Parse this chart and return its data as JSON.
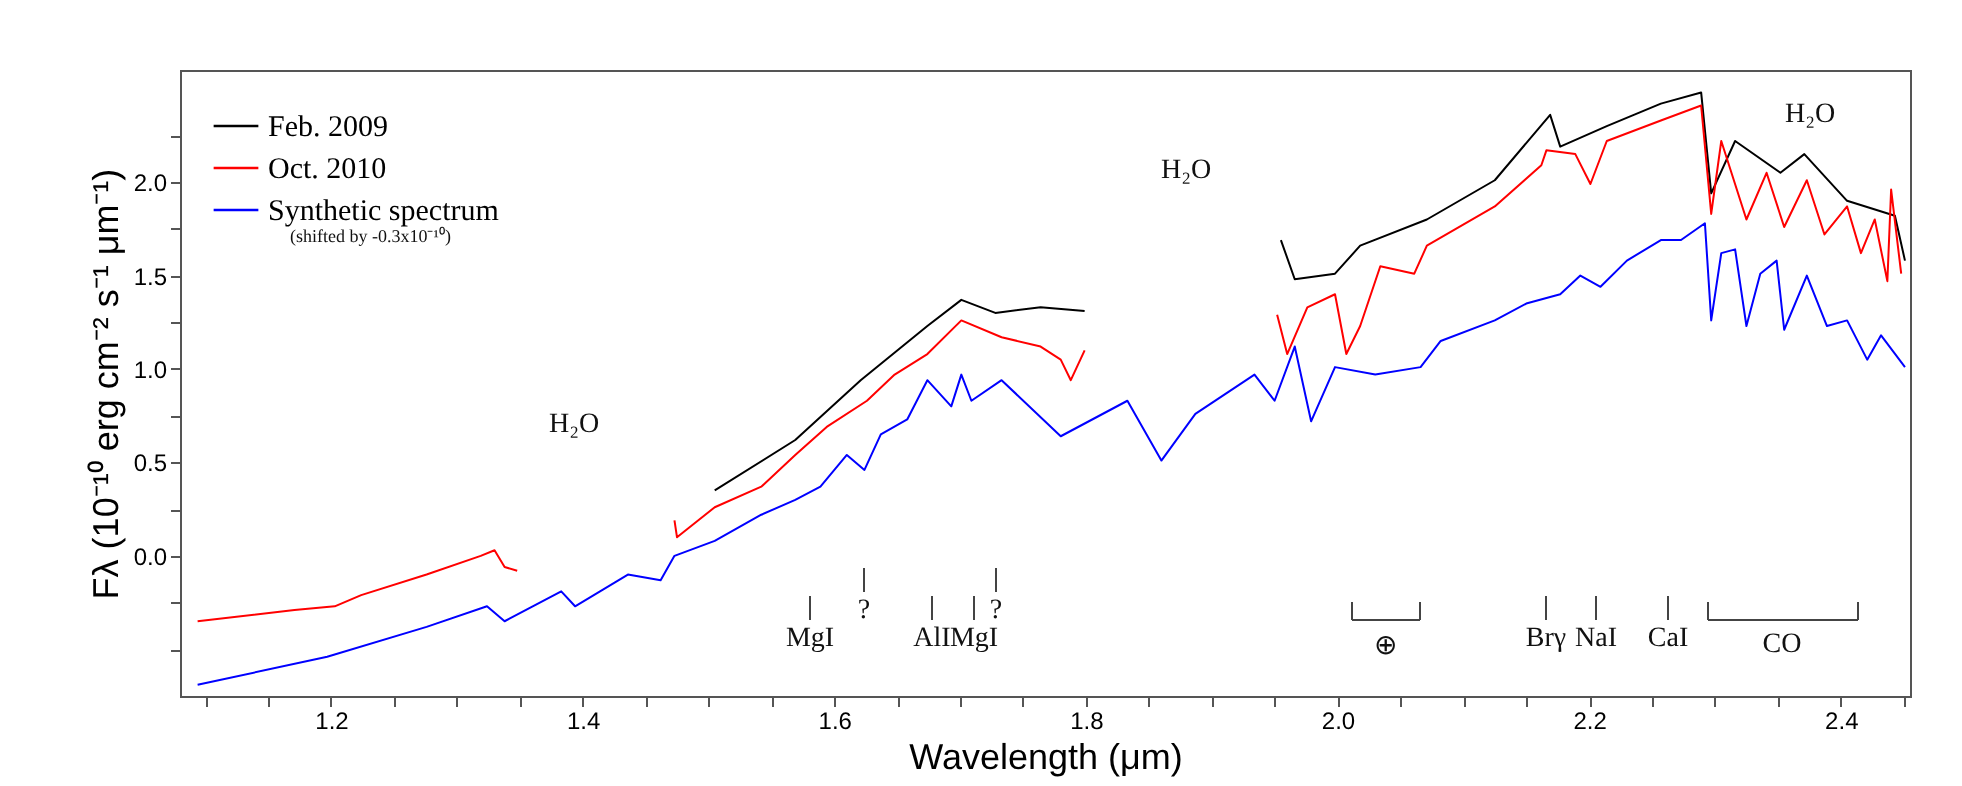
{
  "chart_data": {
    "type": "line",
    "xlabel": "Wavelength (μm)",
    "ylabel": "Fλ (10⁻¹⁰ erg cm⁻² s⁻¹ μm⁻¹)",
    "xlim": [
      1.08,
      2.455
    ],
    "ylim": [
      -0.75,
      2.6
    ],
    "xticks": [
      {
        "value": 1.1,
        "label": null
      },
      {
        "value": 1.15,
        "label": null
      },
      1.2,
      {
        "value": 1.25,
        "label": null
      },
      {
        "value": 1.3,
        "label": null
      },
      {
        "value": 1.35,
        "label": null
      },
      1.4,
      {
        "value": 1.45,
        "label": null
      },
      {
        "value": 1.5,
        "label": null
      },
      {
        "value": 1.55,
        "label": null
      },
      1.6,
      {
        "value": 1.65,
        "label": null
      },
      {
        "value": 1.7,
        "label": null
      },
      {
        "value": 1.75,
        "label": null
      },
      1.8,
      {
        "value": 1.85,
        "label": null
      },
      {
        "value": 1.9,
        "label": null
      },
      {
        "value": 1.95,
        "label": null
      },
      {
        "value": 2.0,
        "label": "2.0"
      },
      {
        "value": 2.05,
        "label": null
      },
      {
        "value": 2.1,
        "label": null
      },
      {
        "value": 2.15,
        "label": null
      },
      2.2,
      {
        "value": 2.25,
        "label": null
      },
      {
        "value": 2.3,
        "label": null
      },
      {
        "value": 2.35,
        "label": null
      },
      2.4,
      {
        "value": 2.45,
        "label": null
      }
    ],
    "yticks": [
      {
        "value": -0.5,
        "label": null
      },
      {
        "value": -0.25,
        "label": null
      },
      {
        "value": 0,
        "label": "0.0"
      },
      {
        "value": 0.25,
        "label": null
      },
      0.5,
      {
        "value": 0.75,
        "label": null
      },
      {
        "value": 1,
        "label": "1.0"
      },
      {
        "value": 1.25,
        "label": null
      },
      1.5,
      {
        "value": 1.75,
        "label": null
      },
      {
        "value": 2,
        "label": "2.0"
      },
      {
        "value": 2.25,
        "label": null
      }
    ],
    "grid": false,
    "legend": "top left",
    "line_style": "solid",
    "marker": "none",
    "series": [
      {
        "name": "Feb. 2009",
        "color": "#000000",
        "x": [
          1.505,
          1.569,
          1.621,
          1.674,
          1.701,
          1.728,
          1.764,
          1.799,
          1.88,
          1.955,
          1.966,
          1.998,
          2.018,
          2.071,
          2.125,
          2.169,
          2.177,
          2.214,
          2.257,
          2.289,
          2.297,
          2.316,
          2.352,
          2.371,
          2.405,
          2.443,
          2.451
        ],
        "values": [
          0.35,
          0.62,
          0.94,
          1.23,
          1.37,
          1.3,
          1.33,
          1.31,
          null,
          1.69,
          1.48,
          1.51,
          1.66,
          1.8,
          2.01,
          2.36,
          2.19,
          2.3,
          2.42,
          2.48,
          1.94,
          2.22,
          2.05,
          2.15,
          1.9,
          1.82,
          1.58
        ]
      },
      {
        "name": "Oct. 2010",
        "color": "#ff0000",
        "x": [
          1.094,
          1.171,
          1.203,
          1.224,
          1.276,
          1.319,
          1.33,
          1.338,
          1.348,
          1.41,
          1.473,
          1.475,
          1.505,
          1.542,
          1.569,
          1.594,
          1.626,
          1.648,
          1.674,
          1.701,
          1.733,
          1.764,
          1.78,
          1.788,
          1.799,
          1.88,
          1.952,
          1.96,
          1.976,
          1.998,
          2.007,
          2.018,
          2.034,
          2.061,
          2.071,
          2.125,
          2.162,
          2.166,
          2.189,
          2.201,
          2.214,
          2.257,
          2.289,
          2.297,
          2.305,
          2.325,
          2.341,
          2.355,
          2.373,
          2.387,
          2.405,
          2.416,
          2.427,
          2.437,
          2.44,
          2.448
        ],
        "values": [
          -0.35,
          -0.29,
          -0.27,
          -0.21,
          -0.1,
          0.0,
          0.03,
          -0.06,
          -0.08,
          null,
          0.19,
          0.1,
          0.26,
          0.37,
          0.54,
          0.69,
          0.83,
          0.97,
          1.08,
          1.26,
          1.17,
          1.12,
          1.05,
          0.94,
          1.1,
          null,
          1.29,
          1.08,
          1.33,
          1.4,
          1.08,
          1.23,
          1.55,
          1.51,
          1.66,
          1.87,
          2.09,
          2.17,
          2.15,
          1.99,
          2.22,
          2.33,
          2.41,
          1.83,
          2.22,
          1.8,
          2.05,
          1.76,
          2.01,
          1.72,
          1.87,
          1.62,
          1.8,
          1.47,
          1.96,
          1.51
        ]
      },
      {
        "name": "Synthetic spectrum",
        "color": "#0000ff",
        "x": [
          1.094,
          1.197,
          1.276,
          1.324,
          1.338,
          1.383,
          1.394,
          1.436,
          1.462,
          1.473,
          1.505,
          1.542,
          1.569,
          1.589,
          1.61,
          1.624,
          1.637,
          1.658,
          1.674,
          1.693,
          1.701,
          1.709,
          1.733,
          1.78,
          1.833,
          1.86,
          1.887,
          1.934,
          1.95,
          1.966,
          1.979,
          1.998,
          2.03,
          2.066,
          2.082,
          2.125,
          2.15,
          2.177,
          2.193,
          2.209,
          2.23,
          2.257,
          2.273,
          2.292,
          2.297,
          2.305,
          2.316,
          2.325,
          2.336,
          2.349,
          2.355,
          2.373,
          2.389,
          2.405,
          2.421,
          2.432,
          2.451
        ],
        "values": [
          -0.69,
          -0.54,
          -0.38,
          -0.27,
          -0.35,
          -0.19,
          -0.27,
          -0.1,
          -0.13,
          0.0,
          0.08,
          0.22,
          0.3,
          0.37,
          0.54,
          0.46,
          0.65,
          0.73,
          0.94,
          0.8,
          0.97,
          0.83,
          0.94,
          0.64,
          0.83,
          0.51,
          0.76,
          0.97,
          0.83,
          1.12,
          0.72,
          1.01,
          0.97,
          1.01,
          1.15,
          1.26,
          1.35,
          1.4,
          1.5,
          1.44,
          1.58,
          1.69,
          1.69,
          1.78,
          1.26,
          1.62,
          1.64,
          1.23,
          1.51,
          1.58,
          1.21,
          1.5,
          1.23,
          1.26,
          1.05,
          1.18,
          1.01
        ]
      }
    ],
    "annotations": [
      "(shifted by -0.3x10⁻¹⁰)",
      "H₂O",
      "H₂O",
      "H₂O",
      "MgI",
      "?",
      "AlI",
      "MgI",
      "?",
      "⊕",
      "Brγ",
      "NaI",
      "CaI",
      "CO"
    ]
  }
}
